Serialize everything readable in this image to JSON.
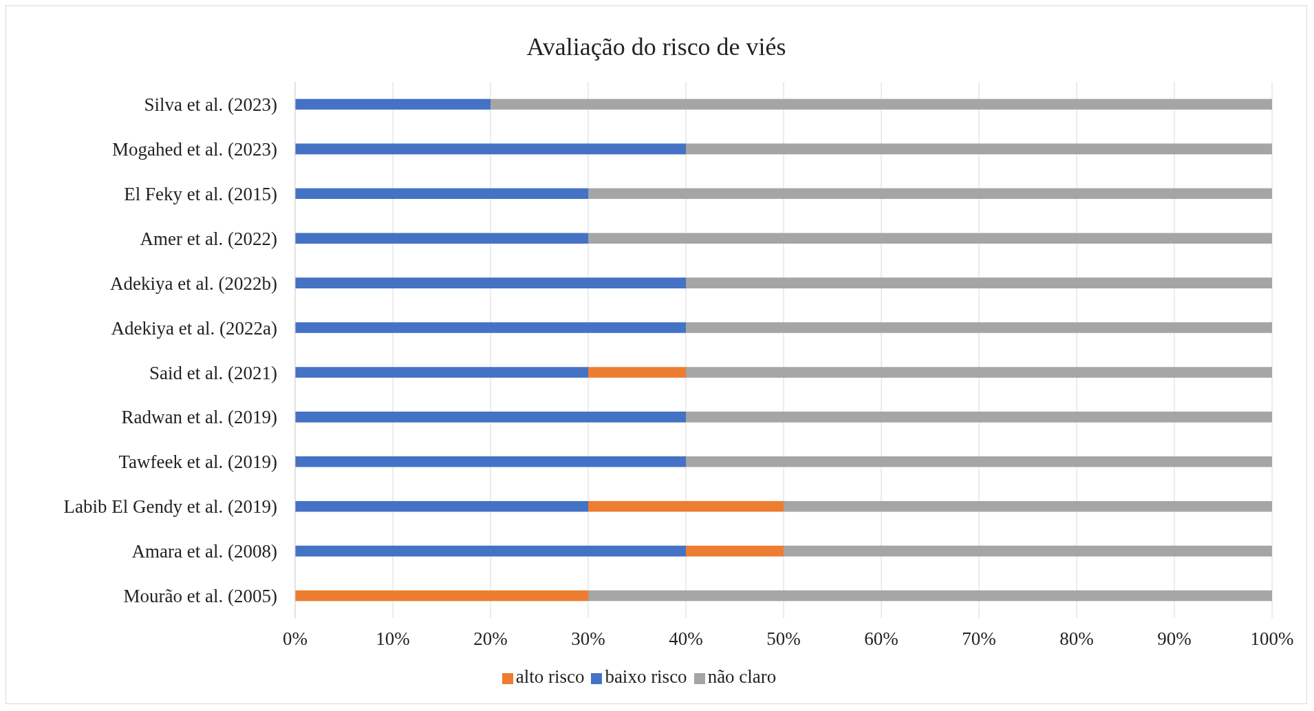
{
  "chart_data": {
    "type": "bar",
    "orientation": "horizontal",
    "stacked": true,
    "title": "Avaliação do risco de viés",
    "categories": [
      "Silva et al. (2023)",
      "Mogahed et al. (2023)",
      "El Feky et al. (2015)",
      "Amer et al. (2022)",
      "Adekiya et al. (2022b)",
      "Adekiya et al. (2022a)",
      "Said et al. (2021)",
      "Radwan et al. (2019)",
      "Tawfeek et al. (2019)",
      "Labib El Gendy et al. (2019)",
      "Amara et al. (2008)",
      "Mourão et al. (2005)"
    ],
    "series": [
      {
        "name": "baixo risco",
        "color": "#4472c4",
        "values": [
          20,
          40,
          30,
          30,
          40,
          40,
          30,
          40,
          40,
          30,
          40,
          0
        ]
      },
      {
        "name": "alto risco",
        "color": "#ed7d31",
        "values": [
          0,
          0,
          0,
          0,
          0,
          0,
          10,
          0,
          0,
          20,
          10,
          30
        ]
      },
      {
        "name": "não claro",
        "color": "#a5a5a5",
        "values": [
          80,
          60,
          70,
          70,
          60,
          60,
          60,
          60,
          60,
          50,
          50,
          70
        ]
      }
    ],
    "xlim": [
      0,
      100
    ],
    "xticks": [
      {
        "value": 0,
        "label": "0%"
      },
      {
        "value": 10,
        "label": "10%"
      },
      {
        "value": 20,
        "label": "20%"
      },
      {
        "value": 30,
        "label": "30%"
      },
      {
        "value": 40,
        "label": "40%"
      },
      {
        "value": 50,
        "label": "50%"
      },
      {
        "value": 60,
        "label": "60%"
      },
      {
        "value": 70,
        "label": "70%"
      },
      {
        "value": 80,
        "label": "80%"
      },
      {
        "value": 90,
        "label": "90%"
      },
      {
        "value": 100,
        "label": "100%"
      }
    ],
    "grid": "x",
    "legend": "bottom"
  }
}
